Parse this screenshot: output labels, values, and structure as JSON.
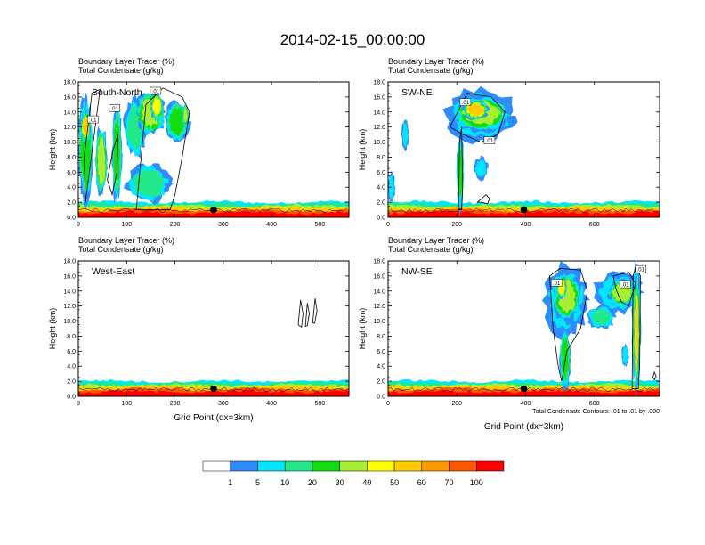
{
  "title": "2014-02-15_00:00:00",
  "colors": {
    "axis": "#000000",
    "contour": "#000000",
    "marker": "#000000",
    "background": "#ffffff"
  },
  "colorbar": {
    "colors": [
      "#ffffff",
      "#2f8cff",
      "#00e6ff",
      "#22e88a",
      "#11dd11",
      "#a8ee33",
      "#ffff00",
      "#ffcc00",
      "#ff9900",
      "#ff5500",
      "#ff0000"
    ],
    "labels": [
      "1",
      "5",
      "10",
      "20",
      "30",
      "40",
      "50",
      "60",
      "70",
      "100"
    ]
  },
  "chart_data": [
    {
      "type": "heatmap",
      "id": "south-north",
      "panel_label": "South-North",
      "subtitle_line1": "Boundary Layer Tracer   (%)",
      "subtitle_line2": "Total Condensate   (g/kg)",
      "ylabel": "Height (km)",
      "xlabel": "",
      "xlim": [
        0,
        560
      ],
      "ylim": [
        0,
        18
      ],
      "xticks": [
        "0",
        "100",
        "200",
        "300",
        "400",
        "500"
      ],
      "xtick_values": [
        0,
        100,
        200,
        300,
        400,
        500
      ],
      "yticks": [
        "0.0",
        "2.0",
        "4.0",
        "6.0",
        "8.0",
        "10.0",
        "12.0",
        "14.0",
        "16.0",
        "18.0"
      ],
      "contour_labels": [
        {
          "text": ".01",
          "x": 160,
          "y": 16.7
        },
        {
          "text": ".01",
          "x": 75,
          "y": 14.4
        },
        {
          "text": ".01",
          "x": 30,
          "y": 12.9
        }
      ],
      "marker": {
        "x": 280,
        "y": 1.0
      },
      "tracer_fields": [
        {
          "level": 4,
          "xs": 0,
          "xe": 30,
          "ys": 2,
          "ye": 16
        },
        {
          "level": 7,
          "xs": 5,
          "xe": 25,
          "ys": 10,
          "ye": 14
        },
        {
          "level": 5,
          "xs": 35,
          "xe": 60,
          "ys": 3,
          "ye": 12
        },
        {
          "level": 4,
          "xs": 70,
          "xe": 90,
          "ys": 2,
          "ye": 15
        },
        {
          "level": 3,
          "xs": 95,
          "xe": 140,
          "ys": 8,
          "ye": 16
        },
        {
          "level": 5,
          "xs": 120,
          "xe": 180,
          "ys": 11,
          "ye": 16.8
        },
        {
          "level": 6,
          "xs": 150,
          "xe": 175,
          "ys": 13,
          "ye": 16.5
        },
        {
          "level": 4,
          "xs": 180,
          "xe": 230,
          "ys": 10,
          "ye": 15.5
        },
        {
          "level": 3,
          "xs": 100,
          "xe": 190,
          "ys": 2,
          "ye": 7
        },
        {
          "level": 5,
          "xs": 215,
          "xe": 228,
          "ys": 12,
          "ye": 15
        }
      ],
      "contours": [
        {
          "points": [
            [
              15,
              2
            ],
            [
              12,
              8
            ],
            [
              22,
              13
            ],
            [
              28,
              16.5
            ],
            [
              45,
              17
            ]
          ]
        },
        {
          "points": [
            [
              120,
              1
            ],
            [
              140,
              15
            ],
            [
              175,
              17.2
            ],
            [
              215,
              16
            ],
            [
              230,
              14
            ],
            [
              215,
              8
            ],
            [
              200,
              3
            ],
            [
              190,
              1
            ]
          ]
        },
        {
          "points": [
            [
              60,
              5
            ],
            [
              72,
              9
            ],
            [
              82,
              11
            ],
            [
              80,
              6
            ],
            [
              70,
              3
            ]
          ]
        }
      ]
    },
    {
      "type": "heatmap",
      "id": "sw-ne",
      "panel_label": "SW-NE",
      "subtitle_line1": "Boundary Layer Tracer   (%)",
      "subtitle_line2": "Total Condensate   (g/kg)",
      "ylabel": "Height (km)",
      "xlabel": "",
      "xlim": [
        0,
        790
      ],
      "ylim": [
        0,
        18
      ],
      "xticks": [
        "0",
        "200",
        "400",
        "600"
      ],
      "xtick_values": [
        0,
        200,
        400,
        600
      ],
      "yticks": [
        "0.0",
        "2.0",
        "4.0",
        "6.0",
        "8.0",
        "10.0",
        "12.0",
        "14.0",
        "16.0",
        "18.0"
      ],
      "contour_labels": [
        {
          "text": ".01",
          "x": 225,
          "y": 15.2
        },
        {
          "text": ".01",
          "x": 295,
          "y": 10.1
        }
      ],
      "marker": {
        "x": 395,
        "y": 1.0
      },
      "tracer_fields": [
        {
          "level": 2,
          "xs": 170,
          "xe": 370,
          "ys": 10,
          "ye": 17
        },
        {
          "level": 5,
          "xs": 190,
          "xe": 350,
          "ys": 11.5,
          "ye": 16.2
        },
        {
          "level": 7,
          "xs": 220,
          "xe": 290,
          "ys": 13,
          "ye": 15.5
        },
        {
          "level": 4,
          "xs": 200,
          "xe": 220,
          "ys": 1,
          "ye": 11
        },
        {
          "level": 2,
          "xs": 40,
          "xe": 60,
          "ys": 9,
          "ye": 13
        },
        {
          "level": 2,
          "xs": 0,
          "xe": 20,
          "ys": 2,
          "ye": 6
        },
        {
          "level": 2,
          "xs": 250,
          "xe": 290,
          "ys": 5,
          "ye": 8
        }
      ],
      "contours": [
        {
          "points": [
            [
              180,
              12
            ],
            [
              230,
              16.5
            ],
            [
              300,
              16
            ],
            [
              340,
              14
            ],
            [
              320,
              11
            ],
            [
              270,
              10
            ],
            [
              220,
              11
            ]
          ]
        },
        {
          "points": [
            [
              205,
              1
            ],
            [
              208,
              10
            ],
            [
              214,
              12
            ],
            [
              217,
              4
            ],
            [
              214,
              1
            ]
          ]
        },
        {
          "points": [
            [
              260,
              2
            ],
            [
              285,
              3
            ],
            [
              295,
              2.5
            ],
            [
              290,
              1.8
            ],
            [
              270,
              2
            ]
          ]
        }
      ]
    },
    {
      "type": "heatmap",
      "id": "west-east",
      "panel_label": "West-East",
      "subtitle_line1": "Boundary Layer Tracer   (%)",
      "subtitle_line2": "Total Condensate   (g/kg)",
      "ylabel": "Height (km)",
      "xlabel": "Grid Point (dx=3km)",
      "xlim": [
        0,
        560
      ],
      "ylim": [
        0,
        18
      ],
      "xticks": [
        "0",
        "100",
        "200",
        "300",
        "400",
        "500"
      ],
      "xtick_values": [
        0,
        100,
        200,
        300,
        400,
        500
      ],
      "yticks": [
        "0.0",
        "2.0",
        "4.0",
        "6.0",
        "8.0",
        "10.0",
        "12.0",
        "14.0",
        "16.0",
        "18.0"
      ],
      "contour_labels": [],
      "marker": {
        "x": 280,
        "y": 1.0
      },
      "tracer_fields": [],
      "contours": [
        {
          "points": [
            [
              455,
              9.5
            ],
            [
              460,
              12.8
            ],
            [
              465,
              11
            ],
            [
              462,
              9.2
            ]
          ]
        },
        {
          "points": [
            [
              470,
              9.3
            ],
            [
              474,
              12.4
            ],
            [
              478,
              11
            ],
            [
              474,
              9.4
            ]
          ]
        },
        {
          "points": [
            [
              485,
              9.8
            ],
            [
              490,
              13
            ],
            [
              494,
              11.4
            ],
            [
              489,
              9.7
            ]
          ]
        }
      ]
    },
    {
      "type": "heatmap",
      "id": "nw-se",
      "panel_label": "NW-SE",
      "subtitle_line1": "Boundary Layer Tracer   (%)",
      "subtitle_line2": "Total Condensate   (g/kg)",
      "ylabel": "Height (km)",
      "xlabel": "Grid Point (dx=3km)",
      "xlim": [
        0,
        790
      ],
      "ylim": [
        0,
        18
      ],
      "xticks": [
        "0",
        "200",
        "400",
        "600"
      ],
      "xtick_values": [
        0,
        200,
        400,
        600
      ],
      "yticks": [
        "0.0",
        "2.0",
        "4.0",
        "6.0",
        "8.0",
        "10.0",
        "12.0",
        "14.0",
        "16.0",
        "18.0"
      ],
      "contour_labels": [
        {
          "text": ".01",
          "x": 490,
          "y": 15.0
        },
        {
          "text": ".01",
          "x": 690,
          "y": 14.8
        },
        {
          "text": ".01",
          "x": 735,
          "y": 16.8
        }
      ],
      "marker": {
        "x": 395,
        "y": 1.0
      },
      "note": "Total Condensate Contours: .01 to .01 by .000",
      "tracer_fields": [
        {
          "level": 2,
          "xs": 455,
          "xe": 580,
          "ys": 8,
          "ye": 17.5
        },
        {
          "level": 5,
          "xs": 480,
          "xe": 560,
          "ys": 10,
          "ye": 16.5
        },
        {
          "level": 6,
          "xs": 490,
          "xe": 520,
          "ys": 13,
          "ye": 16
        },
        {
          "level": 4,
          "xs": 500,
          "xe": 530,
          "ys": 1,
          "ye": 9
        },
        {
          "level": 2,
          "xs": 600,
          "xe": 740,
          "ys": 11,
          "ye": 16.5
        },
        {
          "level": 5,
          "xs": 640,
          "xe": 720,
          "ys": 12,
          "ye": 15.5
        },
        {
          "level": 5,
          "xs": 710,
          "xe": 735,
          "ys": 1,
          "ye": 17.5
        },
        {
          "level": 7,
          "xs": 716,
          "xe": 730,
          "ys": 1,
          "ye": 16
        },
        {
          "level": 3,
          "xs": 580,
          "xe": 660,
          "ys": 9,
          "ye": 12
        },
        {
          "level": 2,
          "xs": 680,
          "xe": 700,
          "ys": 4,
          "ye": 7
        }
      ],
      "contours": [
        {
          "points": [
            [
              470,
              16
            ],
            [
              500,
              17
            ],
            [
              560,
              16.8
            ],
            [
              580,
              14
            ],
            [
              560,
              9
            ],
            [
              520,
              6
            ],
            [
              505,
              2
            ],
            [
              495,
              4
            ],
            [
              480,
              9
            ]
          ]
        },
        {
          "points": [
            [
              710,
              1
            ],
            [
              713,
              16
            ],
            [
              722,
              17.5
            ],
            [
              734,
              16
            ],
            [
              732,
              4
            ],
            [
              728,
              1
            ]
          ]
        },
        {
          "points": [
            [
              655,
              16
            ],
            [
              700,
              16.5
            ],
            [
              720,
              15
            ],
            [
              700,
              12
            ],
            [
              680,
              12.5
            ],
            [
              665,
              14
            ]
          ]
        },
        {
          "points": [
            [
              770,
              2.5
            ],
            [
              775,
              3.2
            ],
            [
              780,
              2.6
            ],
            [
              775,
              2.2
            ]
          ]
        }
      ]
    }
  ]
}
